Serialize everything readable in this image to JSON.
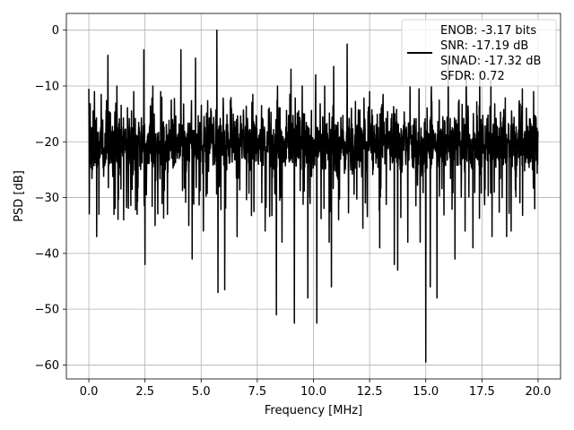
{
  "chart_data": {
    "type": "line",
    "title": "",
    "xlabel": "Frequency [MHz]",
    "ylabel": "PSD [dB]",
    "xlim": [
      -1.0,
      21.0
    ],
    "ylim": [
      -62.5,
      3.0
    ],
    "xticks": [
      0.0,
      2.5,
      5.0,
      7.5,
      10.0,
      12.5,
      15.0,
      17.5,
      20.0
    ],
    "xtick_labels": [
      "0.0",
      "2.5",
      "5.0",
      "7.5",
      "10.0",
      "12.5",
      "15.0",
      "17.5",
      "20.0"
    ],
    "yticks": [
      0,
      -10,
      -20,
      -30,
      -40,
      -50,
      -60
    ],
    "ytick_labels": [
      "0",
      "−10",
      "−20",
      "−30",
      "−40",
      "−50",
      "−60"
    ],
    "grid": true,
    "legend": {
      "placement": "top-right",
      "entries": [
        "ENOB: -3.17 bits",
        "SNR: -17.19 dB",
        "SINAD: -17.32 dB",
        "SFDR: 0.72"
      ]
    },
    "series": [
      {
        "color": "#000000",
        "x_range": [
          0.0,
          20.0
        ],
        "baseline": -20,
        "noise_floor_range": [
          -28,
          -13
        ],
        "peaks": [
          {
            "x": 0.0,
            "y": -10.5
          },
          {
            "x": 0.25,
            "y": -11
          },
          {
            "x": 0.55,
            "y": -11.5
          },
          {
            "x": 0.85,
            "y": -4.5
          },
          {
            "x": 1.25,
            "y": -10
          },
          {
            "x": 2.0,
            "y": -11
          },
          {
            "x": 2.45,
            "y": -3.5
          },
          {
            "x": 2.85,
            "y": -10
          },
          {
            "x": 3.2,
            "y": -11
          },
          {
            "x": 4.1,
            "y": -3.5
          },
          {
            "x": 4.75,
            "y": -5
          },
          {
            "x": 5.7,
            "y": 0
          },
          {
            "x": 6.6,
            "y": -11
          },
          {
            "x": 7.3,
            "y": -11.5
          },
          {
            "x": 7.85,
            "y": -6.5
          },
          {
            "x": 8.4,
            "y": -10
          },
          {
            "x": 8.95,
            "y": -11.5
          },
          {
            "x": 9.0,
            "y": -7
          },
          {
            "x": 9.5,
            "y": -10
          },
          {
            "x": 10.1,
            "y": -8
          },
          {
            "x": 10.5,
            "y": -10
          },
          {
            "x": 10.9,
            "y": -6.5
          },
          {
            "x": 11.5,
            "y": -2.5
          },
          {
            "x": 12.5,
            "y": -11
          },
          {
            "x": 13.1,
            "y": -11.5
          },
          {
            "x": 14.3,
            "y": -10
          },
          {
            "x": 14.7,
            "y": -10.5
          },
          {
            "x": 15.25,
            "y": -10
          },
          {
            "x": 16.0,
            "y": -5.5
          },
          {
            "x": 16.8,
            "y": -8
          },
          {
            "x": 17.4,
            "y": -7.5
          },
          {
            "x": 17.9,
            "y": -9
          },
          {
            "x": 18.6,
            "y": -8
          },
          {
            "x": 19.3,
            "y": -10.5
          },
          {
            "x": 19.8,
            "y": -11
          }
        ],
        "troughs": [
          {
            "x": 0.35,
            "y": -37
          },
          {
            "x": 0.45,
            "y": -33
          },
          {
            "x": 1.55,
            "y": -34
          },
          {
            "x": 2.15,
            "y": -33
          },
          {
            "x": 2.5,
            "y": -42
          },
          {
            "x": 2.95,
            "y": -35
          },
          {
            "x": 3.5,
            "y": -33
          },
          {
            "x": 4.45,
            "y": -35
          },
          {
            "x": 4.6,
            "y": -41
          },
          {
            "x": 5.1,
            "y": -36
          },
          {
            "x": 5.75,
            "y": -47
          },
          {
            "x": 6.05,
            "y": -46.5
          },
          {
            "x": 6.6,
            "y": -37
          },
          {
            "x": 7.85,
            "y": -36
          },
          {
            "x": 8.35,
            "y": -51
          },
          {
            "x": 8.6,
            "y": -38
          },
          {
            "x": 9.15,
            "y": -52.5
          },
          {
            "x": 9.75,
            "y": -48
          },
          {
            "x": 10.15,
            "y": -52.5
          },
          {
            "x": 10.7,
            "y": -38
          },
          {
            "x": 10.8,
            "y": -46
          },
          {
            "x": 12.2,
            "y": -35.5
          },
          {
            "x": 12.95,
            "y": -39
          },
          {
            "x": 13.6,
            "y": -42
          },
          {
            "x": 13.75,
            "y": -43
          },
          {
            "x": 14.2,
            "y": -38
          },
          {
            "x": 14.75,
            "y": -38
          },
          {
            "x": 15.0,
            "y": -59.5
          },
          {
            "x": 15.2,
            "y": -46
          },
          {
            "x": 15.5,
            "y": -48
          },
          {
            "x": 16.3,
            "y": -41
          },
          {
            "x": 16.75,
            "y": -36
          },
          {
            "x": 17.1,
            "y": -39
          },
          {
            "x": 17.95,
            "y": -37
          },
          {
            "x": 18.6,
            "y": -37
          },
          {
            "x": 18.8,
            "y": -36
          },
          {
            "x": 19.85,
            "y": -32
          }
        ]
      }
    ]
  }
}
